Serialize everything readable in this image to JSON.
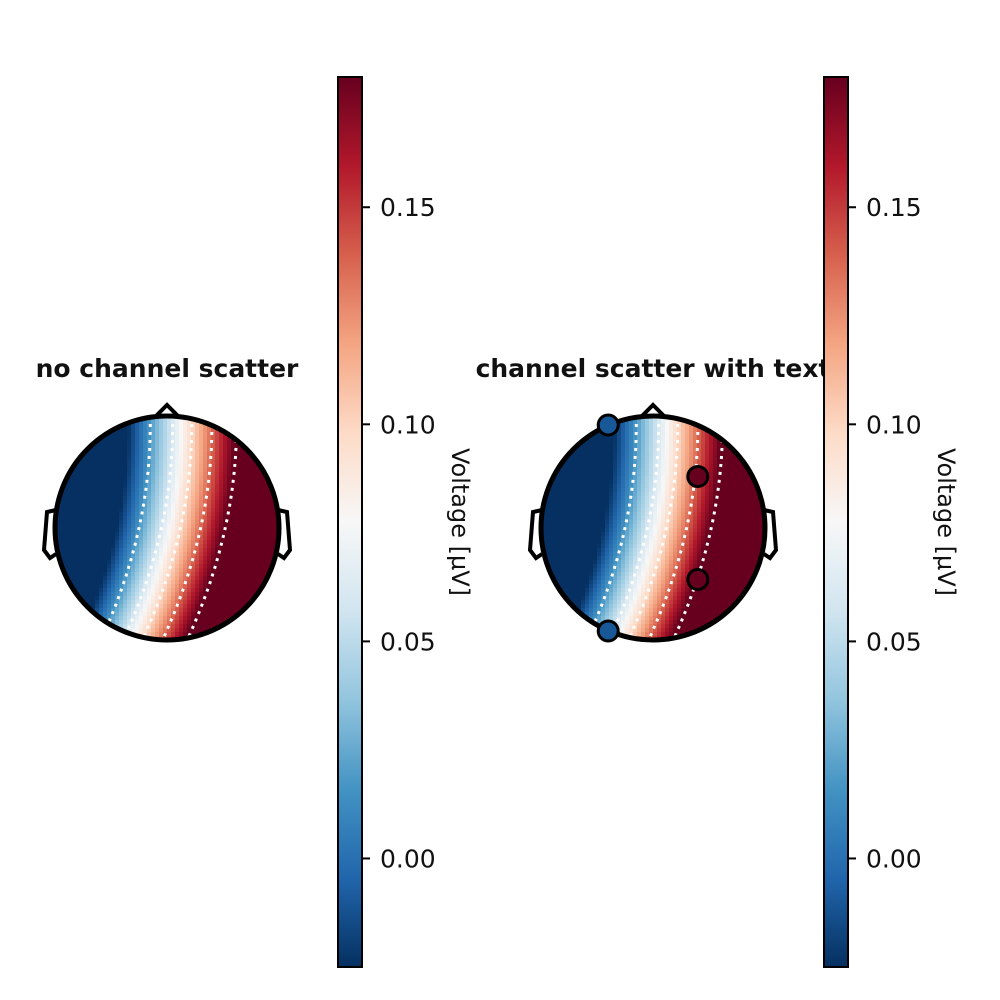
{
  "chart_data": [
    {
      "type": "heatmap",
      "title": "no channel scatter",
      "colorbar": {
        "label": "Voltage [µV]",
        "ticks": [
          0.0,
          0.05,
          0.1,
          0.15
        ],
        "tick_labels": [
          "0.00",
          "0.05",
          "0.10",
          "0.15"
        ],
        "range": [
          -0.025,
          0.18
        ],
        "colormap": "RdBu_r"
      },
      "contours": "dotted white",
      "channels": []
    },
    {
      "type": "heatmap",
      "title": "channel scatter with text",
      "colorbar": {
        "label": "Voltage [µV]",
        "ticks": [
          0.0,
          0.05,
          0.1,
          0.15
        ],
        "tick_labels": [
          "0.00",
          "0.05",
          "0.10",
          "0.15"
        ],
        "range": [
          -0.025,
          0.18
        ],
        "colormap": "RdBu_r"
      },
      "contours": "dotted white",
      "channels": [
        {
          "value": -0.01
        },
        {
          "value": 0.18
        },
        {
          "value": 0.18
        },
        {
          "value": -0.01
        }
      ]
    }
  ]
}
